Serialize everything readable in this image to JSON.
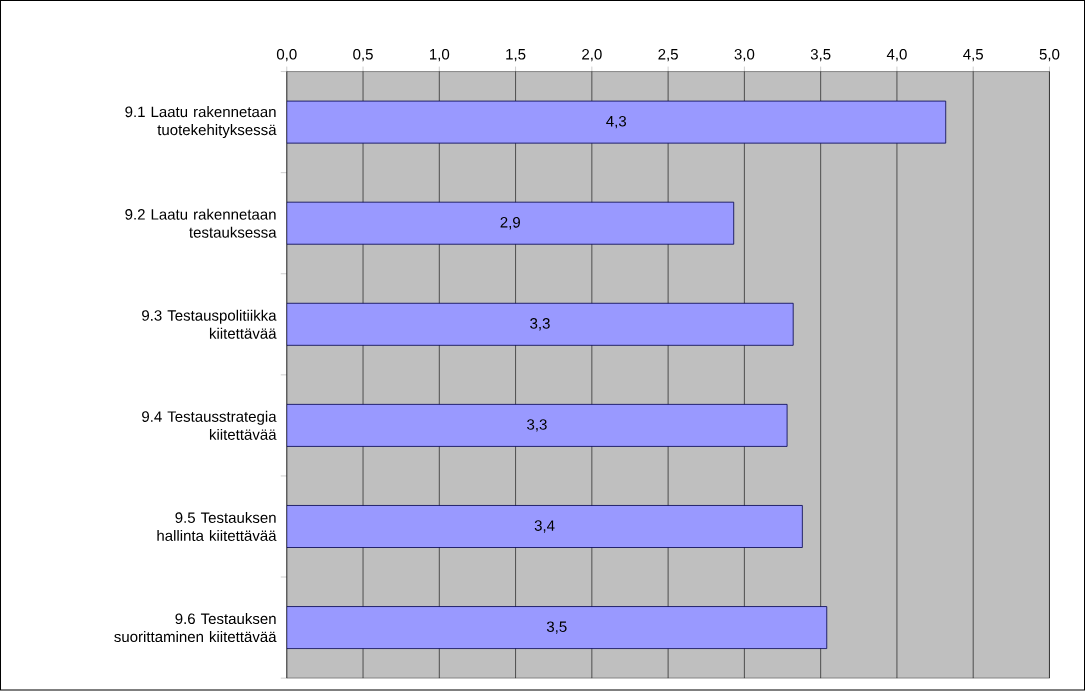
{
  "chart_data": {
    "type": "bar",
    "orientation": "horizontal",
    "categories": [
      "9.1 Laatu rakennetaan tuotekehityksessä",
      "9.2 Laatu rakennetaan testauksessa",
      "9.3 Testauspolitiikka kiitettävää",
      "9.4 Testausstrategia kiitettävää",
      "9.5 Testauksen hallinta kiitettävää",
      "9.6 Testauksen suorittaminen kiitettävää"
    ],
    "values": [
      4.32,
      2.93,
      3.32,
      3.28,
      3.38,
      3.54
    ],
    "value_labels": [
      "4,3",
      "2,9",
      "3,3",
      "3,3",
      "3,4",
      "3,5"
    ],
    "color": "#9999ff",
    "xlim": [
      0,
      5
    ],
    "xticks": [
      {
        "value": 0,
        "label": "0,0"
      },
      {
        "value": 0.5,
        "label": "0,5"
      },
      {
        "value": 1,
        "label": "1,0"
      },
      {
        "value": 1.5,
        "label": "1,5"
      },
      {
        "value": 2,
        "label": "2,0"
      },
      {
        "value": 2.5,
        "label": "2,5"
      },
      {
        "value": 3,
        "label": "3,0"
      },
      {
        "value": 3.5,
        "label": "3,5"
      },
      {
        "value": 4,
        "label": "4,0"
      },
      {
        "value": 4.5,
        "label": "4,5"
      },
      {
        "value": 5,
        "label": "5,0"
      }
    ],
    "grid": "x"
  }
}
